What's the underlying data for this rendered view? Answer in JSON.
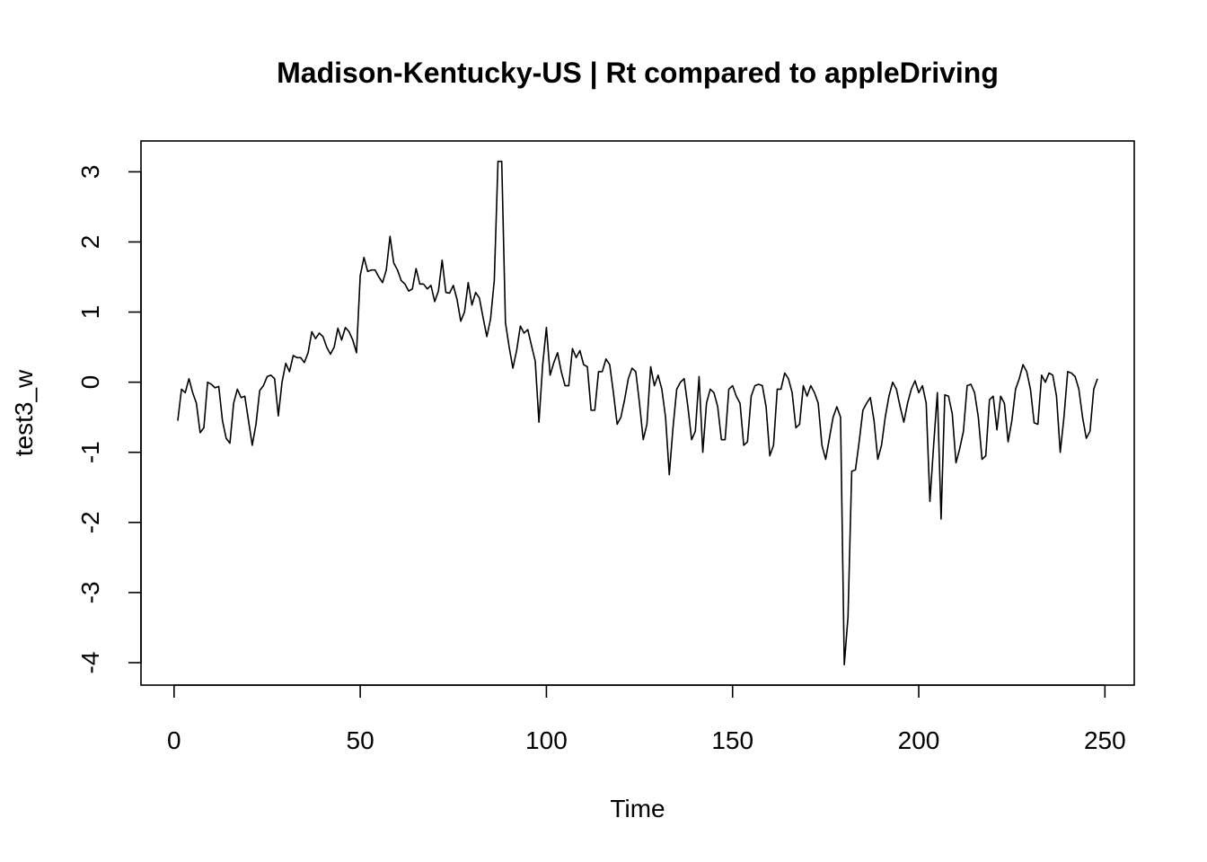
{
  "chart_data": {
    "type": "line",
    "title": "Madison-Kentucky-US | Rt compared to appleDriving",
    "x_label": "Time",
    "y_label": "test3_w",
    "color": "#000000",
    "xlim": [
      -8.88,
      257.88
    ],
    "ylim": [
      -4.32,
      3.44
    ],
    "xticks": [
      0,
      50,
      100,
      150,
      200,
      250
    ],
    "yticks": [
      -4,
      -3,
      -2,
      -1,
      0,
      1,
      2,
      3
    ],
    "x": [
      1,
      2,
      3,
      4,
      5,
      6,
      7,
      8,
      9,
      10,
      11,
      12,
      13,
      14,
      15,
      16,
      17,
      18,
      19,
      20,
      21,
      22,
      23,
      24,
      25,
      26,
      27,
      28,
      29,
      30,
      31,
      32,
      33,
      34,
      35,
      36,
      37,
      38,
      39,
      40,
      41,
      42,
      43,
      44,
      45,
      46,
      47,
      48,
      49,
      50,
      51,
      52,
      53,
      54,
      55,
      56,
      57,
      58,
      59,
      60,
      61,
      62,
      63,
      64,
      65,
      66,
      67,
      68,
      69,
      70,
      71,
      72,
      73,
      74,
      75,
      76,
      77,
      78,
      79,
      80,
      81,
      82,
      83,
      84,
      85,
      86,
      87,
      88,
      89,
      90,
      91,
      92,
      93,
      94,
      95,
      96,
      97,
      98,
      99,
      100,
      101,
      102,
      103,
      104,
      105,
      106,
      107,
      108,
      109,
      110,
      111,
      112,
      113,
      114,
      115,
      116,
      117,
      118,
      119,
      120,
      121,
      122,
      123,
      124,
      125,
      126,
      127,
      128,
      129,
      130,
      131,
      132,
      133,
      134,
      135,
      136,
      137,
      138,
      139,
      140,
      141,
      142,
      143,
      144,
      145,
      146,
      147,
      148,
      149,
      150,
      151,
      152,
      153,
      154,
      155,
      156,
      157,
      158,
      159,
      160,
      161,
      162,
      163,
      164,
      165,
      166,
      167,
      168,
      169,
      170,
      171,
      172,
      173,
      174,
      175,
      176,
      177,
      178,
      179,
      180,
      181,
      182,
      183,
      184,
      185,
      186,
      187,
      188,
      189,
      190,
      191,
      192,
      193,
      194,
      195,
      196,
      197,
      198,
      199,
      200,
      201,
      202,
      203,
      204,
      205,
      206,
      207,
      208,
      209,
      210,
      211,
      212,
      213,
      214,
      215,
      216,
      217,
      218,
      219,
      220,
      221,
      222,
      223,
      224,
      225,
      226,
      227,
      228,
      229,
      230,
      231,
      232,
      233,
      234,
      235,
      236,
      237,
      238,
      239,
      240,
      241,
      242,
      243,
      244,
      245,
      246,
      247,
      248
    ],
    "values": [
      -0.55,
      -0.1,
      -0.15,
      0.05,
      -0.15,
      -0.3,
      -0.72,
      -0.65,
      0.0,
      -0.03,
      -0.08,
      -0.06,
      -0.55,
      -0.8,
      -0.87,
      -0.3,
      -0.1,
      -0.22,
      -0.2,
      -0.55,
      -0.9,
      -0.6,
      -0.12,
      -0.05,
      0.08,
      0.1,
      0.05,
      -0.48,
      0.0,
      0.27,
      0.15,
      0.38,
      0.35,
      0.35,
      0.28,
      0.42,
      0.72,
      0.62,
      0.7,
      0.65,
      0.5,
      0.4,
      0.5,
      0.77,
      0.6,
      0.78,
      0.72,
      0.6,
      0.42,
      1.52,
      1.78,
      1.58,
      1.6,
      1.6,
      1.5,
      1.42,
      1.6,
      2.08,
      1.7,
      1.6,
      1.45,
      1.4,
      1.3,
      1.33,
      1.62,
      1.4,
      1.4,
      1.33,
      1.38,
      1.15,
      1.3,
      1.74,
      1.28,
      1.27,
      1.38,
      1.18,
      0.87,
      1.0,
      1.42,
      1.1,
      1.28,
      1.2,
      0.92,
      0.65,
      0.9,
      1.45,
      3.15,
      3.15,
      0.85,
      0.5,
      0.2,
      0.45,
      0.8,
      0.7,
      0.75,
      0.52,
      0.3,
      -0.57,
      0.25,
      0.78,
      0.1,
      0.28,
      0.42,
      0.15,
      -0.05,
      -0.05,
      0.48,
      0.35,
      0.45,
      0.25,
      0.22,
      -0.4,
      -0.4,
      0.15,
      0.15,
      0.33,
      0.25,
      -0.15,
      -0.6,
      -0.5,
      -0.25,
      0.05,
      0.2,
      0.15,
      -0.3,
      -0.82,
      -0.6,
      0.22,
      -0.05,
      0.1,
      -0.1,
      -0.5,
      -1.32,
      -0.65,
      -0.1,
      0.0,
      0.05,
      -0.35,
      -0.82,
      -0.7,
      0.08,
      -1.0,
      -0.3,
      -0.1,
      -0.15,
      -0.35,
      -0.82,
      -0.82,
      -0.1,
      -0.05,
      -0.2,
      -0.3,
      -0.9,
      -0.85,
      -0.2,
      -0.05,
      -0.03,
      -0.05,
      -0.35,
      -1.05,
      -0.9,
      -0.1,
      -0.1,
      0.13,
      0.05,
      -0.15,
      -0.65,
      -0.6,
      -0.05,
      -0.2,
      -0.05,
      -0.15,
      -0.3,
      -0.9,
      -1.1,
      -0.8,
      -0.5,
      -0.35,
      -0.5,
      -4.03,
      -3.35,
      -1.27,
      -1.25,
      -0.85,
      -0.4,
      -0.3,
      -0.22,
      -0.55,
      -1.1,
      -0.9,
      -0.5,
      -0.2,
      0.0,
      -0.1,
      -0.35,
      -0.57,
      -0.3,
      -0.1,
      0.02,
      -0.15,
      -0.05,
      -0.3,
      -1.7,
      -0.9,
      -0.15,
      -1.95,
      -0.18,
      -0.2,
      -0.45,
      -1.15,
      -0.95,
      -0.7,
      -0.05,
      -0.03,
      -0.15,
      -0.5,
      -1.1,
      -1.05,
      -0.25,
      -0.2,
      -0.68,
      -0.2,
      -0.3,
      -0.85,
      -0.55,
      -0.1,
      0.05,
      0.25,
      0.15,
      -0.1,
      -0.58,
      -0.6,
      0.1,
      0.0,
      0.13,
      0.1,
      -0.2,
      -1.0,
      -0.5,
      0.15,
      0.13,
      0.08,
      -0.1,
      -0.5,
      -0.8,
      -0.7,
      -0.1,
      0.05
    ]
  }
}
